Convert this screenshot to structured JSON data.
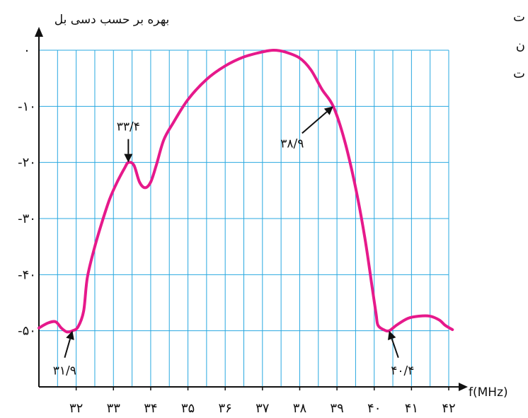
{
  "chart_data": {
    "type": "line",
    "ylabel": "بهره بر حسب دسی بل",
    "xlabel": "f(MHz)",
    "xlim": [
      31,
      42
    ],
    "ylim": [
      -60,
      0
    ],
    "x_ticks": [
      {
        "value": 32,
        "label": "۳۲"
      },
      {
        "value": 33,
        "label": "۳۳"
      },
      {
        "value": 34,
        "label": "۳۴"
      },
      {
        "value": 35,
        "label": "۳۵"
      },
      {
        "value": 36,
        "label": "۳۶"
      },
      {
        "value": 37,
        "label": "۳۷"
      },
      {
        "value": 38,
        "label": "۳۸"
      },
      {
        "value": 39,
        "label": "۳۹"
      },
      {
        "value": 40,
        "label": "۴۰"
      },
      {
        "value": 41,
        "label": "۴۱"
      },
      {
        "value": 42,
        "label": "۴۲"
      }
    ],
    "y_ticks": [
      {
        "value": 0,
        "label": "۰"
      },
      {
        "value": -10,
        "label": "-۱۰"
      },
      {
        "value": -20,
        "label": "-۲۰"
      },
      {
        "value": -30,
        "label": "-۳۰"
      },
      {
        "value": -40,
        "label": "-۴۰"
      },
      {
        "value": -50,
        "label": "-۵۰"
      }
    ],
    "grid": true,
    "grid_color": "#29a8e0",
    "line_color": "#e6198b",
    "series": [
      {
        "values": [
          [
            31.0,
            -49.5
          ],
          [
            31.25,
            -48.6
          ],
          [
            31.45,
            -48.4
          ],
          [
            31.6,
            -49.5
          ],
          [
            31.75,
            -50.2
          ],
          [
            31.9,
            -50.0
          ],
          [
            32.05,
            -49.3
          ],
          [
            32.2,
            -46.5
          ],
          [
            32.3,
            -40.5
          ],
          [
            32.5,
            -35.0
          ],
          [
            32.7,
            -30.5
          ],
          [
            32.9,
            -26.5
          ],
          [
            33.1,
            -23.5
          ],
          [
            33.3,
            -21.0
          ],
          [
            33.4,
            -20.0
          ],
          [
            33.55,
            -20.5
          ],
          [
            33.7,
            -23.5
          ],
          [
            33.85,
            -24.5
          ],
          [
            34.0,
            -23.5
          ],
          [
            34.15,
            -20.5
          ],
          [
            34.35,
            -16.0
          ],
          [
            34.6,
            -13.0
          ],
          [
            35.0,
            -8.8
          ],
          [
            35.5,
            -5.2
          ],
          [
            36.0,
            -2.8
          ],
          [
            36.5,
            -1.2
          ],
          [
            37.0,
            -0.3
          ],
          [
            37.3,
            0.0
          ],
          [
            37.6,
            -0.3
          ],
          [
            38.0,
            -1.4
          ],
          [
            38.3,
            -3.5
          ],
          [
            38.6,
            -7.0
          ],
          [
            38.9,
            -10.0
          ],
          [
            39.2,
            -16.0
          ],
          [
            39.5,
            -24.5
          ],
          [
            39.75,
            -33.5
          ],
          [
            39.95,
            -42.5
          ],
          [
            40.05,
            -47.0
          ],
          [
            40.1,
            -49.0
          ],
          [
            40.25,
            -49.8
          ],
          [
            40.4,
            -50.0
          ],
          [
            40.6,
            -49.0
          ],
          [
            40.9,
            -47.8
          ],
          [
            41.2,
            -47.4
          ],
          [
            41.5,
            -47.4
          ],
          [
            41.75,
            -48.1
          ],
          [
            41.9,
            -49.0
          ],
          [
            42.1,
            -49.8
          ]
        ]
      }
    ],
    "annotations": [
      {
        "text": "۳۳/۴",
        "x": 33.4,
        "y": -20.0
      },
      {
        "text": "۳۸/۹",
        "x": 38.9,
        "y": -10.0
      },
      {
        "text": "۳۱/۹",
        "x": 31.9,
        "y": -50.0
      },
      {
        "text": "۴۰/۴",
        "x": 40.4,
        "y": -50.0
      }
    ]
  },
  "side_fragments": [
    "ت",
    "ن",
    "ت"
  ]
}
